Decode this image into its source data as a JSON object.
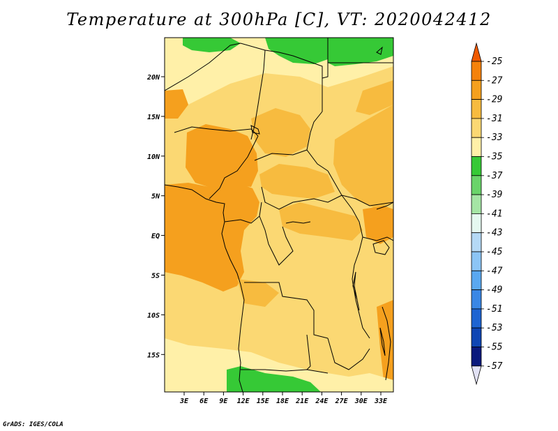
{
  "title": "Temperature at 300hPa [C], VT: 2020042412",
  "credit": "GrADS: IGES/COLA",
  "lat_ticks": [
    "20N",
    "15N",
    "10N",
    "5N",
    "EQ",
    "5S",
    "10S",
    "15S"
  ],
  "lon_ticks": [
    "3E",
    "6E",
    "9E",
    "12E",
    "15E",
    "18E",
    "21E",
    "24E",
    "27E",
    "30E",
    "33E"
  ],
  "colorbar": {
    "labels": [
      "-25",
      "-27",
      "-29",
      "-31",
      "-33",
      "-35",
      "-37",
      "-39",
      "-41",
      "-43",
      "-45",
      "-47",
      "-49",
      "-51",
      "-53",
      "-55",
      "-57"
    ],
    "colors": [
      "#f05a00",
      "#f5820a",
      "#f5a01e",
      "#f7bb3f",
      "#fbd873",
      "#fff0a8",
      "#36c936",
      "#6ad46a",
      "#a5e5a5",
      "#e5f8f0",
      "#b5d9f5",
      "#8cc5f5",
      "#5aa8f0",
      "#3a87e5",
      "#1e64d2",
      "#0f46b4",
      "#0a197d",
      "#e2e2f5"
    ]
  },
  "colors": {
    "land_base": "#fbd873",
    "warm_fill": "#f5a01e",
    "mid_fill": "#f7bb3f",
    "cool_fill": "#fff0a8",
    "green_fill": "#36c936"
  }
}
